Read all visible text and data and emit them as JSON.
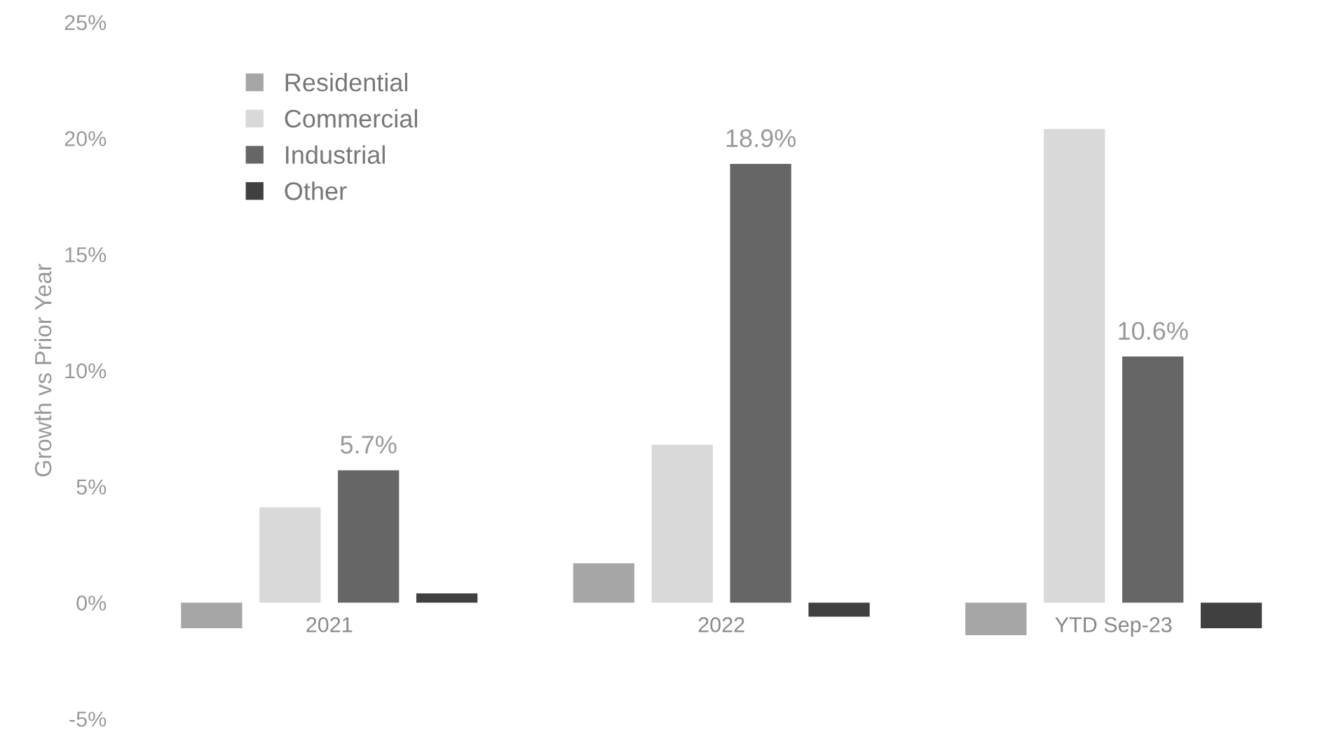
{
  "chart_data": {
    "type": "bar",
    "ylabel": "Growth vs Prior Year",
    "categories": [
      "2021",
      "2022",
      "YTD Sep-23"
    ],
    "series": [
      {
        "name": "Residential",
        "color": "#a6a6a6",
        "values": [
          -1.1,
          1.7,
          -1.4
        ]
      },
      {
        "name": "Commercial",
        "color": "#d9d9d9",
        "values": [
          4.1,
          6.8,
          20.4
        ]
      },
      {
        "name": "Industrial",
        "color": "#666666",
        "values": [
          5.7,
          18.9,
          10.6
        ],
        "value_labels": [
          "5.7%",
          "18.9%",
          "10.6%"
        ]
      },
      {
        "name": "Other",
        "color": "#404040",
        "values": [
          0.4,
          -0.6,
          -1.1
        ]
      }
    ],
    "ylim": [
      -5,
      25
    ],
    "yticks": [
      {
        "value": -5,
        "label": "-5%"
      },
      {
        "value": 0,
        "label": "0%"
      },
      {
        "value": 5,
        "label": "5%"
      },
      {
        "value": 10,
        "label": "10%"
      },
      {
        "value": 15,
        "label": "15%"
      },
      {
        "value": 20,
        "label": "20%"
      },
      {
        "value": 25,
        "label": "25%"
      }
    ],
    "legend": "top left",
    "grid": false
  }
}
